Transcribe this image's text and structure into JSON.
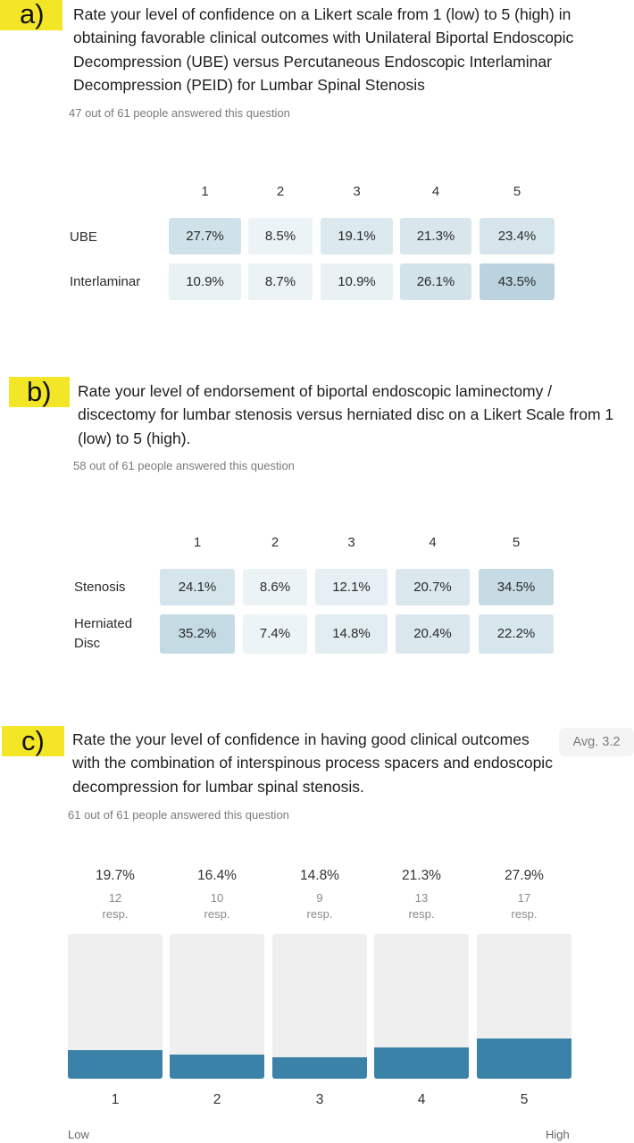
{
  "section_a": {
    "tag": "a)",
    "question": "Rate your level of confidence on a Likert scale from 1 (low) to 5 (high) in obtaining favorable clinical outcomes with Unilateral Biportal Endoscopic Decompression (UBE) versus Percutaneous Endoscopic Interlaminar Decompression (PEID) for Lumbar Spinal Stenosis",
    "answered": "47 out of 61 people answered this question"
  },
  "section_b": {
    "tag": "b)",
    "question": "Rate your level of endorsement of biportal endoscopic laminectomy / discectomy for lumbar stenosis versus herniated disc on a Likert Scale from 1 (low) to 5 (high).",
    "answered": "58 out of 61 people answered this question"
  },
  "section_c": {
    "tag": "c)",
    "question": "Rate the your level of confidence in having good clinical outcomes with the combination of interspinous process spacers and endoscopic decompression for lumbar spinal stenosis.",
    "answered": "61 out of 61 people answered this question",
    "avg": "Avg. 3.2",
    "resp_label": "resp.",
    "low_label": "Low",
    "high_label": "High"
  },
  "colors": {
    "tag_yellow": "#f2e627",
    "bar_fill": "#3a82a8",
    "bar_track": "#efefef",
    "heat_low": "#edf4f7",
    "heat_high": "#b9d3de"
  },
  "chart_data": [
    {
      "type": "heatmap",
      "columns": [
        "1",
        "2",
        "3",
        "4",
        "5"
      ],
      "rows": [
        {
          "name": "UBE",
          "values": [
            27.7,
            8.5,
            19.1,
            21.3,
            23.4
          ],
          "labels": [
            "27.7%",
            "8.5%",
            "19.1%",
            "21.3%",
            "23.4%"
          ]
        },
        {
          "name": "Interlaminar",
          "values": [
            10.9,
            8.7,
            10.9,
            26.1,
            43.5
          ],
          "labels": [
            "10.9%",
            "8.7%",
            "10.9%",
            "26.1%",
            "43.5%"
          ]
        }
      ]
    },
    {
      "type": "heatmap",
      "columns": [
        "1",
        "2",
        "3",
        "4",
        "5"
      ],
      "rows": [
        {
          "name": "Stenosis",
          "values": [
            24.1,
            8.6,
            12.1,
            20.7,
            34.5
          ],
          "labels": [
            "24.1%",
            "8.6%",
            "12.1%",
            "20.7%",
            "34.5%"
          ]
        },
        {
          "name": "Herniated Disc",
          "values": [
            35.2,
            7.4,
            14.8,
            20.4,
            22.2
          ],
          "labels": [
            "35.2%",
            "7.4%",
            "14.8%",
            "20.4%",
            "22.2%"
          ]
        }
      ]
    },
    {
      "type": "bar",
      "categories": [
        "1",
        "2",
        "3",
        "4",
        "5"
      ],
      "values": [
        19.7,
        16.4,
        14.8,
        21.3,
        27.9
      ],
      "value_labels": [
        "19.7%",
        "16.4%",
        "14.8%",
        "21.3%",
        "27.9%"
      ],
      "counts": [
        "12",
        "10",
        "9",
        "13",
        "17"
      ],
      "ylim": [
        0,
        100
      ]
    }
  ]
}
